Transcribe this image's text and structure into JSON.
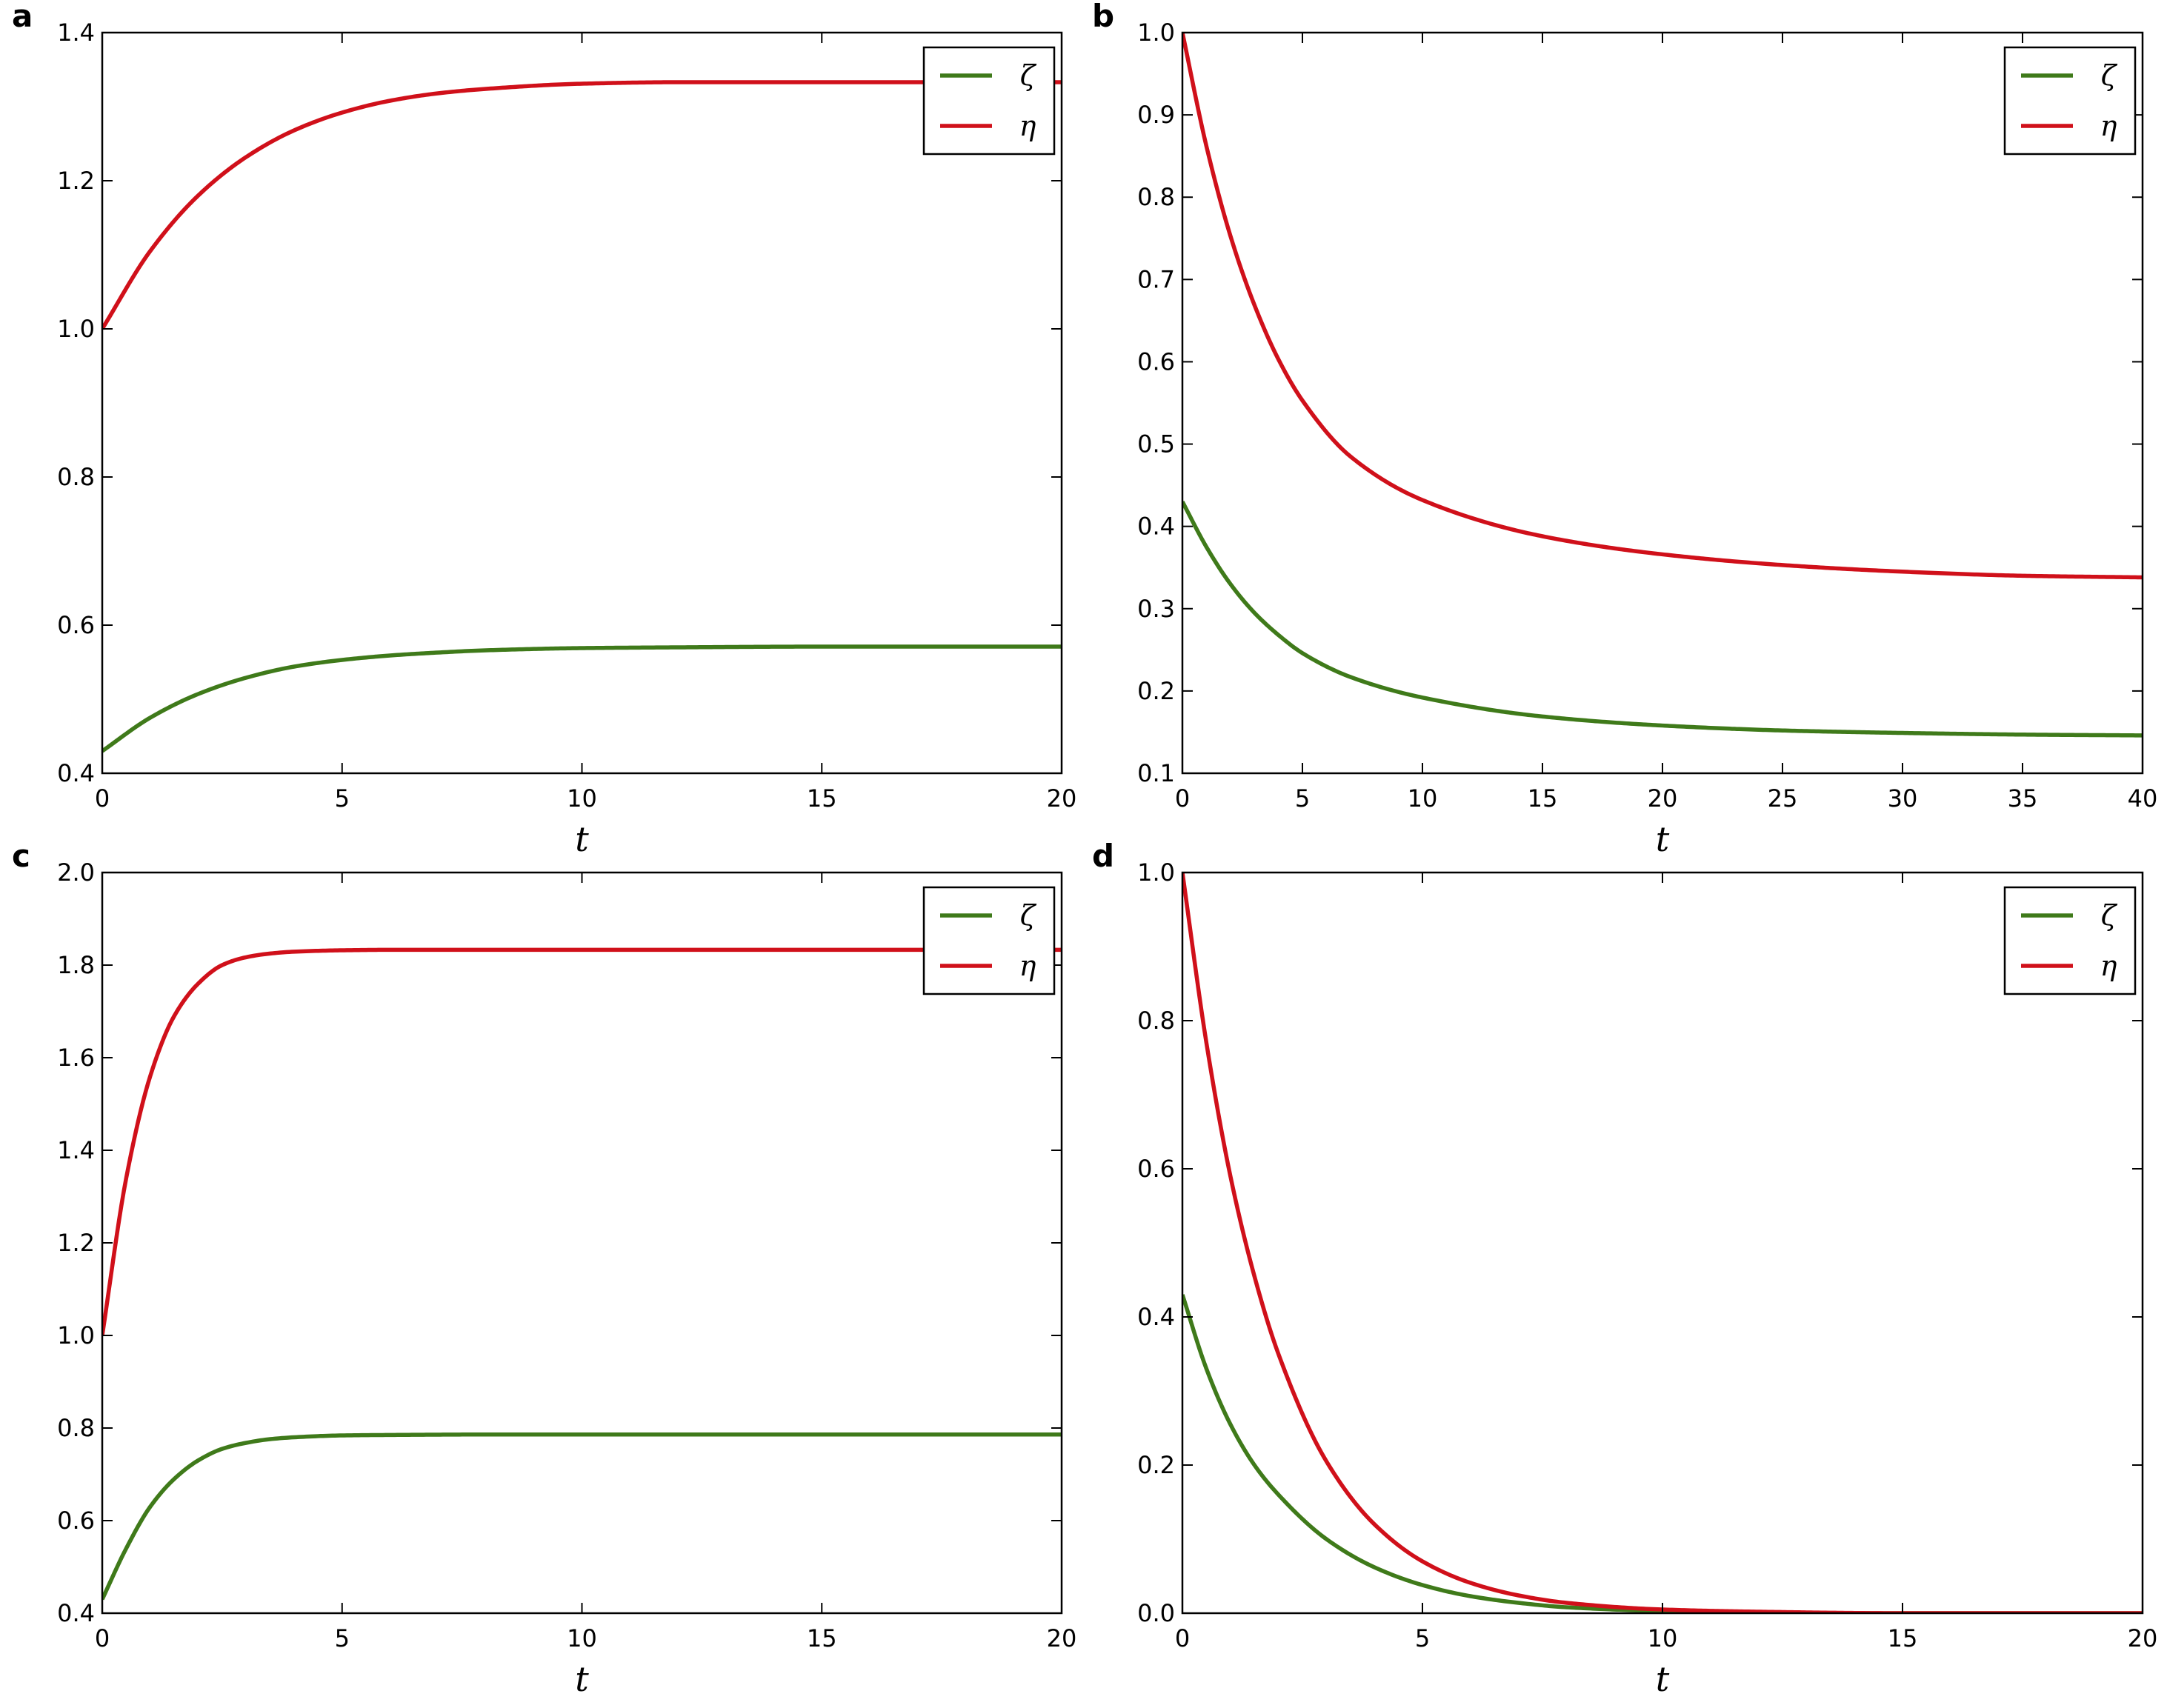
{
  "colors": {
    "zeta": "#3f7a1a",
    "eta": "#d0101a",
    "axis": "#000000"
  },
  "chart_data": [
    {
      "panel": "a",
      "type": "line",
      "xlabel": "t",
      "ylabel": "",
      "xlim": [
        0,
        20
      ],
      "ylim": [
        0.4,
        1.4
      ],
      "xticks": [
        "0",
        "5",
        "10",
        "15",
        "20"
      ],
      "yticks": [
        "0.4",
        "0.6",
        "0.8",
        "1.0",
        "1.2",
        "1.4"
      ],
      "legend": "top-right",
      "grid": false,
      "x": [
        0,
        1,
        2,
        3,
        4,
        5,
        6,
        7,
        8,
        10,
        12,
        15,
        20
      ],
      "series": [
        {
          "name": "ζ",
          "color_key": "zeta",
          "values": [
            0.43,
            0.475,
            0.507,
            0.529,
            0.544,
            0.553,
            0.559,
            0.563,
            0.566,
            0.569,
            0.57,
            0.571,
            0.571
          ]
        },
        {
          "name": "η",
          "color_key": "eta",
          "values": [
            1.0,
            1.105,
            1.18,
            1.232,
            1.268,
            1.292,
            1.308,
            1.318,
            1.324,
            1.331,
            1.333,
            1.333,
            1.333
          ]
        }
      ]
    },
    {
      "panel": "b",
      "type": "line",
      "xlabel": "t",
      "ylabel": "",
      "xlim": [
        0,
        40
      ],
      "ylim": [
        0.1,
        1.0
      ],
      "xticks": [
        "0",
        "5",
        "10",
        "15",
        "20",
        "25",
        "30",
        "35",
        "40"
      ],
      "yticks": [
        "0.1",
        "0.2",
        "0.3",
        "0.4",
        "0.5",
        "0.6",
        "0.7",
        "0.8",
        "0.9",
        "1.0"
      ],
      "legend": "top-right",
      "grid": false,
      "x": [
        0,
        1,
        2,
        3,
        4,
        5,
        7,
        10,
        15,
        20,
        25,
        30,
        35,
        40
      ],
      "series": [
        {
          "name": "ζ",
          "color_key": "zeta",
          "values": [
            0.43,
            0.375,
            0.33,
            0.295,
            0.268,
            0.246,
            0.217,
            0.192,
            0.169,
            0.158,
            0.152,
            0.149,
            0.147,
            0.146
          ]
        },
        {
          "name": "η",
          "color_key": "eta",
          "values": [
            1.0,
            0.862,
            0.753,
            0.669,
            0.603,
            0.553,
            0.485,
            0.432,
            0.388,
            0.366,
            0.353,
            0.345,
            0.34,
            0.338
          ]
        }
      ]
    },
    {
      "panel": "c",
      "type": "line",
      "xlabel": "t",
      "ylabel": "",
      "xlim": [
        0,
        20
      ],
      "ylim": [
        0.4,
        2.0
      ],
      "xticks": [
        "0",
        "5",
        "10",
        "15",
        "20"
      ],
      "yticks": [
        "0.4",
        "0.6",
        "0.8",
        "1.0",
        "1.2",
        "1.4",
        "1.6",
        "1.8",
        "2.0"
      ],
      "legend": "top-right",
      "grid": false,
      "x": [
        0,
        0.5,
        1,
        1.5,
        2,
        2.5,
        3,
        3.5,
        4,
        5,
        6,
        8,
        10,
        15,
        20
      ],
      "series": [
        {
          "name": "ζ",
          "color_key": "zeta",
          "values": [
            0.43,
            0.54,
            0.63,
            0.69,
            0.73,
            0.755,
            0.768,
            0.776,
            0.78,
            0.784,
            0.785,
            0.786,
            0.786,
            0.786,
            0.786
          ]
        },
        {
          "name": "η",
          "color_key": "eta",
          "values": [
            1.0,
            1.34,
            1.56,
            1.69,
            1.76,
            1.8,
            1.817,
            1.825,
            1.829,
            1.832,
            1.833,
            1.833,
            1.833,
            1.833,
            1.833
          ]
        }
      ]
    },
    {
      "panel": "d",
      "type": "line",
      "xlabel": "t",
      "ylabel": "",
      "xlim": [
        0,
        20
      ],
      "ylim": [
        0.0,
        1.0
      ],
      "xticks": [
        "0",
        "5",
        "10",
        "15",
        "20"
      ],
      "yticks": [
        "0.0",
        "0.2",
        "0.4",
        "0.6",
        "0.8",
        "1.0"
      ],
      "legend": "top-right",
      "grid": false,
      "x": [
        0,
        0.5,
        1,
        1.5,
        2,
        3,
        4,
        5,
        6,
        7,
        8,
        10,
        12,
        15,
        20
      ],
      "series": [
        {
          "name": "ζ",
          "color_key": "zeta",
          "values": [
            0.43,
            0.33,
            0.255,
            0.2,
            0.16,
            0.1,
            0.062,
            0.038,
            0.023,
            0.014,
            0.008,
            0.003,
            0.001,
            0.0,
            0.0
          ]
        },
        {
          "name": "η",
          "color_key": "eta",
          "values": [
            1.0,
            0.77,
            0.59,
            0.455,
            0.35,
            0.205,
            0.12,
            0.07,
            0.041,
            0.024,
            0.014,
            0.005,
            0.002,
            0.0,
            0.0
          ]
        }
      ]
    }
  ]
}
